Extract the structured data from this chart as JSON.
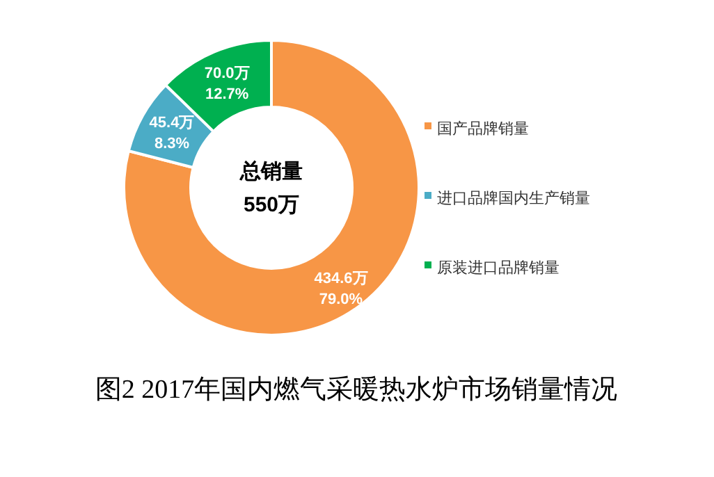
{
  "chart_data": {
    "type": "donut",
    "title": "图2  2017年国内燃气采暖热水炉市场销量情况",
    "categories": [
      "国产品牌销量",
      "进口品牌国内生产销量",
      "原装进口品牌销量"
    ],
    "values": [
      434.6,
      45.4,
      70.0
    ],
    "colors": [
      "#f79646",
      "#4bacc6",
      "#00b050"
    ],
    "value_labels": [
      "434.6万\n79.0%",
      "45.4万\n8.3%",
      "70.0万\n12.7%"
    ],
    "annotations": [
      "总销量\n550万"
    ],
    "legend": "right"
  }
}
